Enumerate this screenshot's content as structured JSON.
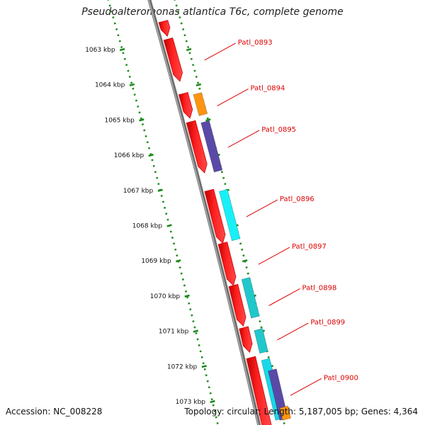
{
  "title": "Pseudoalteromonas atlantica T6c, complete genome",
  "footer": {
    "accession": "Accession: NC_008228",
    "summary": "Topology: circular; Length: 5,187,005 bp; Genes: 4,364"
  },
  "chart_data": {
    "type": "genome-map",
    "topology": "circular",
    "axis_unit": "kbp",
    "axis_range_kbp": [
      1062.5,
      1073.5
    ],
    "ticks": [
      {
        "kbp": 1063,
        "label": "1063 kbp"
      },
      {
        "kbp": 1064,
        "label": "1064 kbp"
      },
      {
        "kbp": 1065,
        "label": "1065 kbp"
      },
      {
        "kbp": 1066,
        "label": "1066 kbp"
      },
      {
        "kbp": 1067,
        "label": "1067 kbp"
      },
      {
        "kbp": 1068,
        "label": "1068 kbp"
      },
      {
        "kbp": 1069,
        "label": "1069 kbp"
      },
      {
        "kbp": 1070,
        "label": "1070 kbp"
      },
      {
        "kbp": 1071,
        "label": "1071 kbp"
      },
      {
        "kbp": 1072,
        "label": "1072 kbp"
      },
      {
        "kbp": 1073,
        "label": "1073 kbp"
      }
    ],
    "genes": [
      {
        "name": "",
        "start_kbp": 1062.2,
        "end_kbp": 1062.62,
        "strand": 1
      },
      {
        "name": "Patl_0893",
        "start_kbp": 1062.7,
        "end_kbp": 1063.9,
        "strand": 1
      },
      {
        "name": "Patl_0894",
        "start_kbp": 1064.25,
        "end_kbp": 1064.95,
        "strand": 1
      },
      {
        "name": "Patl_0895",
        "start_kbp": 1065.05,
        "end_kbp": 1066.5,
        "strand": 1
      },
      {
        "name": "Patl_0896",
        "start_kbp": 1067.0,
        "end_kbp": 1068.5,
        "strand": 1
      },
      {
        "name": "Patl_0897",
        "start_kbp": 1068.5,
        "end_kbp": 1069.7,
        "strand": 1
      },
      {
        "name": "Patl_0898",
        "start_kbp": 1069.7,
        "end_kbp": 1070.85,
        "strand": 1
      },
      {
        "name": "Patl_0899",
        "start_kbp": 1070.9,
        "end_kbp": 1071.6,
        "strand": 1
      },
      {
        "name": "Patl_0900",
        "start_kbp": 1071.75,
        "end_kbp": 1073.9,
        "strand": 1
      }
    ],
    "features": [
      {
        "start_kbp": 1064.25,
        "end_kbp": 1064.85,
        "color": "#ff9410"
      },
      {
        "start_kbp": 1065.05,
        "end_kbp": 1066.45,
        "color": "#5a4aa8"
      },
      {
        "start_kbp": 1067.0,
        "end_kbp": 1068.4,
        "color": "#18f0f8"
      },
      {
        "start_kbp": 1069.5,
        "end_kbp": 1070.6,
        "color": "#20c8cc"
      },
      {
        "start_kbp": 1070.95,
        "end_kbp": 1071.6,
        "color": "#20c8cc"
      },
      {
        "start_kbp": 1071.8,
        "end_kbp": 1073.5,
        "color": "#18d8e8"
      },
      {
        "start_kbp": 1072.1,
        "end_kbp": 1073.5,
        "color": "#5a4aa8"
      },
      {
        "start_kbp": 1073.15,
        "end_kbp": 1073.5,
        "color": "#ff9410"
      }
    ],
    "colors": {
      "gene": "#ff1010",
      "gene_edge": "#cc0000",
      "backbone": "#8a8a8a",
      "tick_dots": "#1a8a1a",
      "label": "#dd0000"
    }
  }
}
